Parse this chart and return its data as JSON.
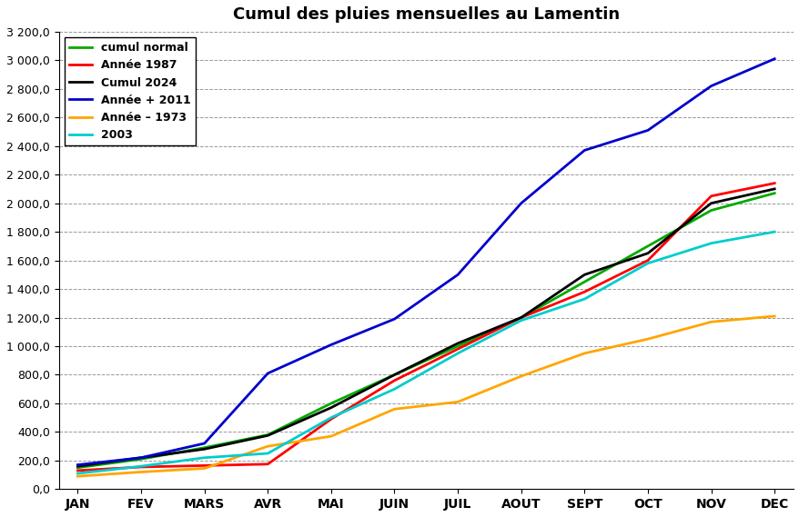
{
  "title": "Cumul des pluies mensuelles au Lamentin",
  "months": [
    "JAN",
    "FEV",
    "MARS",
    "AVR",
    "MAI",
    "JUIN",
    "JUIL",
    "AOUT",
    "SEPT",
    "OCT",
    "NOV",
    "DEC"
  ],
  "series": {
    "cumul normal": {
      "color": "#00aa00",
      "values": [
        150,
        210,
        290,
        380,
        600,
        800,
        1000,
        1200,
        1450,
        1700,
        1950,
        2070
      ]
    },
    "Année 1987": {
      "color": "#ff0000",
      "values": [
        130,
        155,
        165,
        175,
        490,
        760,
        980,
        1200,
        1380,
        1600,
        2050,
        2140
      ]
    },
    "Cumul 2024": {
      "color": "#000000",
      "values": [
        160,
        220,
        280,
        375,
        570,
        800,
        1020,
        1200,
        1500,
        1650,
        2000,
        2100
      ]
    },
    "Année + 2011": {
      "color": "#0000cc",
      "values": [
        170,
        220,
        320,
        810,
        1010,
        1190,
        1500,
        2000,
        2370,
        2510,
        2820,
        3010
      ]
    },
    "Année – 1973": {
      "color": "#ffa500",
      "values": [
        90,
        120,
        145,
        300,
        370,
        560,
        610,
        790,
        950,
        1050,
        1170,
        1210
      ]
    },
    "2003": {
      "color": "#00cccc",
      "values": [
        110,
        160,
        220,
        250,
        500,
        700,
        950,
        1180,
        1330,
        1580,
        1720,
        1800
      ]
    }
  },
  "ylim": [
    0,
    3200
  ],
  "yticks": [
    0,
    200,
    400,
    600,
    800,
    1000,
    1200,
    1400,
    1600,
    1800,
    2000,
    2200,
    2400,
    2600,
    2800,
    3000,
    3200
  ],
  "background_color": "#ffffff",
  "title_fontsize": 13,
  "legend_order": [
    "cumul normal",
    "Année 1987",
    "Cumul 2024",
    "Année + 2011",
    "Année – 1973",
    "2003"
  ]
}
